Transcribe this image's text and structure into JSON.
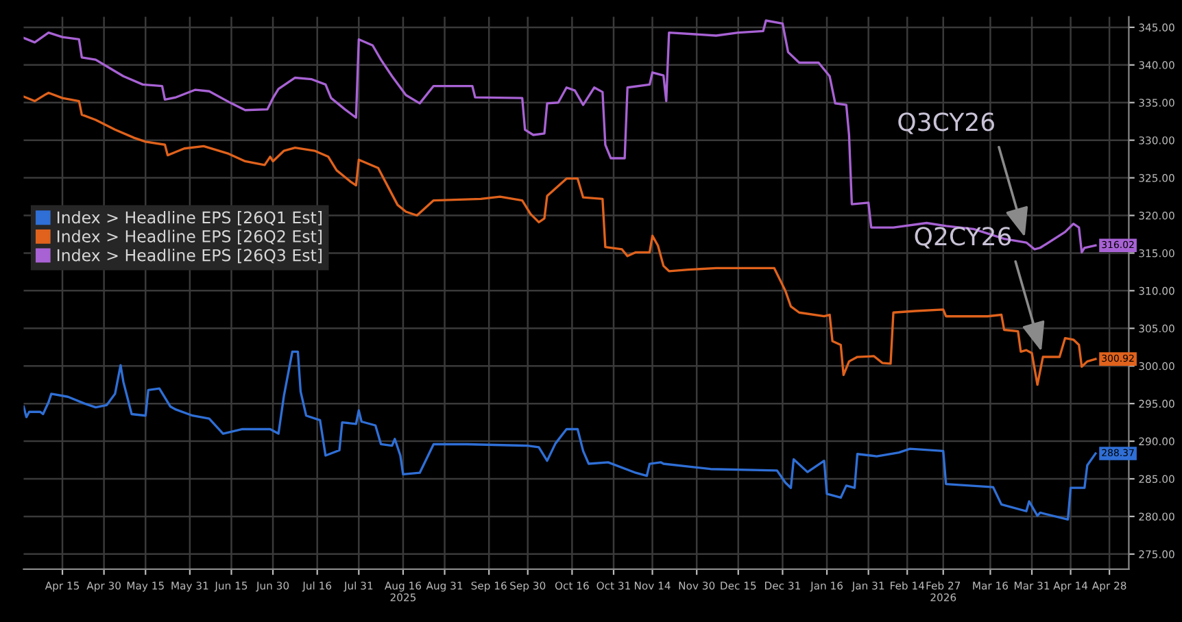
{
  "chart_data": {
    "type": "line",
    "grid": true,
    "legend": "left",
    "line_style": "solid",
    "xlim": [
      "2025-04-01",
      "2026-05-05"
    ],
    "xticks": [
      {
        "value": "2025-04-15",
        "label": "Apr 15"
      },
      {
        "value": "2025-04-30",
        "label": "Apr 30"
      },
      {
        "value": "2025-05-15",
        "label": "May 15"
      },
      {
        "value": "2025-05-31",
        "label": "May 31"
      },
      {
        "value": "2025-06-15",
        "label": "Jun 15"
      },
      {
        "value": "2025-06-30",
        "label": "Jun 30"
      },
      {
        "value": "2025-07-16",
        "label": "Jul 16"
      },
      {
        "value": "2025-07-31",
        "label": "Jul 31"
      },
      {
        "value": "2025-08-16",
        "label": "Aug 16\n2025"
      },
      {
        "value": "2025-08-31",
        "label": "Aug 31"
      },
      {
        "value": "2025-09-16",
        "label": "Sep 16"
      },
      {
        "value": "2025-09-30",
        "label": "Sep 30"
      },
      {
        "value": "2025-10-16",
        "label": "Oct 16"
      },
      {
        "value": "2025-10-31",
        "label": "Oct 31"
      },
      {
        "value": "2025-11-14",
        "label": "Nov 14"
      },
      {
        "value": "2025-11-30",
        "label": "Nov 30"
      },
      {
        "value": "2025-12-15",
        "label": "Dec 15"
      },
      {
        "value": "2025-12-31",
        "label": "Dec 31"
      },
      {
        "value": "2026-01-16",
        "label": "Jan 16"
      },
      {
        "value": "2026-01-31",
        "label": "Jan 31"
      },
      {
        "value": "2026-02-14",
        "label": "Feb 14"
      },
      {
        "value": "2026-02-27",
        "label": "Feb 27\n2026"
      },
      {
        "value": "2026-03-16",
        "label": "Mar 16"
      },
      {
        "value": "2026-03-31",
        "label": "Mar 31"
      },
      {
        "value": "2026-04-14",
        "label": "Apr 14"
      },
      {
        "value": "2026-04-28",
        "label": "Apr 28"
      }
    ],
    "ylim": [
      273,
      346.4
    ],
    "yticks": [
      {
        "value": 275,
        "label": "275.00"
      },
      {
        "value": 280,
        "label": "280.00"
      },
      {
        "value": 285,
        "label": "285.00"
      },
      {
        "value": 290,
        "label": "290.00"
      },
      {
        "value": 295,
        "label": "295.00"
      },
      {
        "value": 300,
        "label": "300.00"
      },
      {
        "value": 305,
        "label": "305.00"
      },
      {
        "value": 310,
        "label": "310.00"
      },
      {
        "value": 315,
        "label": "315.00"
      },
      {
        "value": 320,
        "label": "320.00"
      },
      {
        "value": 325,
        "label": "325.00"
      },
      {
        "value": 330,
        "label": "330.00"
      },
      {
        "value": 335,
        "label": "335.00"
      },
      {
        "value": 340,
        "label": "340.00"
      },
      {
        "value": 345,
        "label": "345.00"
      }
    ],
    "annotations": [
      {
        "text": "Q3CY26",
        "x": "2026-03-29",
        "y": 316.4
      },
      {
        "text": "Q2CY26",
        "x": "2026-04-04",
        "y": 301.2
      }
    ],
    "series": [
      {
        "name": "Index > Headline EPS [26Q1 Est]",
        "color": "#2f6fd6",
        "x": [
          "2025-04-01",
          "2025-04-02",
          "2025-04-03",
          "2025-04-07",
          "2025-04-08",
          "2025-04-10",
          "2025-04-11",
          "2025-04-17",
          "2025-04-23",
          "2025-04-27",
          "2025-05-01",
          "2025-05-04",
          "2025-05-06",
          "2025-05-07",
          "2025-05-10",
          "2025-05-15",
          "2025-05-16",
          "2025-05-20",
          "2025-05-24",
          "2025-05-26",
          "2025-06-01",
          "2025-06-07",
          "2025-06-12",
          "2025-06-19",
          "2025-06-29",
          "2025-07-02",
          "2025-07-04",
          "2025-07-07",
          "2025-07-09",
          "2025-07-10",
          "2025-07-12",
          "2025-07-17",
          "2025-07-19",
          "2025-07-24",
          "2025-07-25",
          "2025-07-30",
          "2025-07-31",
          "2025-08-01",
          "2025-08-06",
          "2025-08-08",
          "2025-08-12",
          "2025-08-13",
          "2025-08-15",
          "2025-08-16",
          "2025-08-22",
          "2025-08-27",
          "2025-09-08",
          "2025-09-30",
          "2025-10-04",
          "2025-10-07",
          "2025-10-10",
          "2025-10-14",
          "2025-10-18",
          "2025-10-20",
          "2025-10-22",
          "2025-10-29",
          "2025-11-08",
          "2025-11-12",
          "2025-11-13",
          "2025-11-17",
          "2025-11-18",
          "2025-12-05",
          "2025-12-29",
          "2026-01-01",
          "2026-01-03",
          "2026-01-04",
          "2026-01-09",
          "2026-01-15",
          "2026-01-16",
          "2026-01-21",
          "2026-01-23",
          "2026-01-26",
          "2026-01-27",
          "2026-02-03",
          "2026-02-11",
          "2026-02-15",
          "2026-02-27",
          "2026-02-28",
          "2026-03-17",
          "2026-03-20",
          "2026-03-29",
          "2026-03-30",
          "2026-04-02",
          "2026-04-03",
          "2026-04-13",
          "2026-04-14",
          "2026-04-19",
          "2026-04-20",
          "2026-04-23"
        ],
        "values": [
          294.6,
          293.2,
          293.9,
          293.9,
          293.6,
          295.2,
          296.3,
          295.9,
          295,
          294.5,
          294.8,
          296.3,
          300.1,
          297.9,
          293.6,
          293.4,
          296.8,
          297,
          294.6,
          294.2,
          293.4,
          293,
          291,
          291.6,
          291.6,
          291,
          296.1,
          301.9,
          301.9,
          296.6,
          293.4,
          292.8,
          288.1,
          288.8,
          292.5,
          292.3,
          294.1,
          292.6,
          292.1,
          289.6,
          289.4,
          290.3,
          288.1,
          285.6,
          285.8,
          289.6,
          289.6,
          289.4,
          289.2,
          287.4,
          289.7,
          291.6,
          291.6,
          288.7,
          287,
          287.2,
          285.8,
          285.4,
          287,
          287.2,
          287,
          286.3,
          286.1,
          284.5,
          283.8,
          287.6,
          285.9,
          287.4,
          283,
          282.5,
          284.1,
          283.8,
          288.3,
          288,
          288.5,
          289,
          288.7,
          284.3,
          283.9,
          281.6,
          280.7,
          282,
          280.1,
          280.5,
          279.6,
          283.8,
          283.8,
          286.8,
          288.37
        ],
        "value_labels": [
          null,
          null,
          null,
          null,
          null,
          null,
          null,
          null,
          null,
          null,
          null,
          null,
          null,
          null,
          null,
          null,
          null,
          null,
          null,
          null,
          null,
          null,
          null,
          null,
          null,
          null,
          null,
          null,
          null,
          null,
          null,
          null,
          null,
          null,
          null,
          null,
          null,
          null,
          null,
          null,
          null,
          null,
          null,
          null,
          null,
          null,
          null,
          null,
          null,
          null,
          null,
          null,
          null,
          null,
          null,
          null,
          null,
          null,
          null,
          null,
          null,
          null,
          null,
          null,
          null,
          null,
          null,
          null,
          null,
          null,
          null,
          null,
          null,
          null,
          null,
          null,
          null,
          null,
          null,
          null,
          null,
          null,
          null,
          null,
          null,
          null,
          null,
          null,
          "288.37"
        ]
      },
      {
        "name": "Index > Headline EPS [26Q2 Est]",
        "color": "#e0621c",
        "x": [
          "2025-04-01",
          "2025-04-05",
          "2025-04-09",
          "2025-04-10",
          "2025-04-15",
          "2025-04-21",
          "2025-04-22",
          "2025-04-27",
          "2025-05-04",
          "2025-05-11",
          "2025-05-15",
          "2025-05-22",
          "2025-05-23",
          "2025-05-29",
          "2025-06-05",
          "2025-06-14",
          "2025-06-20",
          "2025-06-27",
          "2025-06-29",
          "2025-06-30",
          "2025-07-04",
          "2025-07-08",
          "2025-07-15",
          "2025-07-20",
          "2025-07-23",
          "2025-07-28",
          "2025-07-30",
          "2025-07-31",
          "2025-08-07",
          "2025-08-10",
          "2025-08-14",
          "2025-08-17",
          "2025-08-21",
          "2025-08-27",
          "2025-09-13",
          "2025-09-20",
          "2025-09-28",
          "2025-10-01",
          "2025-10-04",
          "2025-10-06",
          "2025-10-07",
          "2025-10-14",
          "2025-10-18",
          "2025-10-20",
          "2025-10-27",
          "2025-10-28",
          "2025-11-03",
          "2025-11-05",
          "2025-11-08",
          "2025-11-13",
          "2025-11-14",
          "2025-11-16",
          "2025-11-18",
          "2025-11-20",
          "2025-11-27",
          "2025-12-07",
          "2025-12-28",
          "2026-01-01",
          "2026-01-03",
          "2026-01-06",
          "2026-01-15",
          "2026-01-17",
          "2026-01-18",
          "2026-01-21",
          "2026-01-22",
          "2026-01-24",
          "2026-01-27",
          "2026-02-02",
          "2026-02-05",
          "2026-02-08",
          "2026-02-09",
          "2026-02-17",
          "2026-02-27",
          "2026-02-28",
          "2026-03-15",
          "2026-03-20",
          "2026-03-21",
          "2026-03-26",
          "2026-03-27",
          "2026-03-29",
          "2026-03-31",
          "2026-04-02",
          "2026-04-04",
          "2026-04-10",
          "2026-04-12",
          "2026-04-15",
          "2026-04-17",
          "2026-04-18",
          "2026-04-20",
          "2026-04-23"
        ],
        "values": [
          335.8,
          335.2,
          336.1,
          336.3,
          335.6,
          335.2,
          333.4,
          332.7,
          331.4,
          330.3,
          329.8,
          329.4,
          328,
          328.9,
          329.2,
          328.2,
          327.2,
          326.7,
          327.8,
          327.2,
          328.6,
          329,
          328.6,
          327.8,
          326,
          324.5,
          324,
          327.4,
          326.3,
          324.2,
          321.4,
          320.5,
          320,
          322,
          322.2,
          322.5,
          322,
          320.2,
          319.1,
          319.6,
          322.6,
          324.9,
          324.9,
          322.4,
          322.2,
          315.8,
          315.5,
          314.6,
          315.1,
          315.1,
          317.3,
          316,
          313.3,
          312.6,
          312.8,
          313,
          313,
          310,
          307.9,
          307.1,
          306.6,
          306.8,
          303.3,
          302.8,
          298.8,
          300.6,
          301.2,
          301.3,
          300.4,
          300.3,
          307.1,
          307.3,
          307.5,
          306.6,
          306.6,
          306.8,
          304.8,
          304.6,
          301.9,
          302.1,
          301.7,
          297.5,
          301.2,
          301.2,
          303.7,
          303.5,
          302.8,
          299.9,
          300.6,
          300.92
        ],
        "value_labels": [
          null,
          null,
          null,
          null,
          null,
          null,
          null,
          null,
          null,
          null,
          null,
          null,
          null,
          null,
          null,
          null,
          null,
          null,
          null,
          null,
          null,
          null,
          null,
          null,
          null,
          null,
          null,
          null,
          null,
          null,
          null,
          null,
          null,
          null,
          null,
          null,
          null,
          null,
          null,
          null,
          null,
          null,
          null,
          null,
          null,
          null,
          null,
          null,
          null,
          null,
          null,
          null,
          null,
          null,
          null,
          null,
          null,
          null,
          null,
          null,
          null,
          null,
          null,
          null,
          null,
          null,
          null,
          null,
          null,
          null,
          null,
          null,
          null,
          null,
          null,
          null,
          null,
          null,
          null,
          null,
          null,
          null,
          null,
          null,
          null,
          null,
          null,
          null,
          null,
          "300.92"
        ]
      },
      {
        "name": "Index > Headline EPS [26Q3 Est]",
        "color": "#a862d4",
        "x": [
          "2025-04-01",
          "2025-04-05",
          "2025-04-10",
          "2025-04-15",
          "2025-04-21",
          "2025-04-22",
          "2025-04-27",
          "2025-05-02",
          "2025-05-07",
          "2025-05-14",
          "2025-05-21",
          "2025-05-22",
          "2025-05-26",
          "2025-06-02",
          "2025-06-07",
          "2025-06-15",
          "2025-06-20",
          "2025-06-28",
          "2025-06-30",
          "2025-07-02",
          "2025-07-08",
          "2025-07-14",
          "2025-07-19",
          "2025-07-21",
          "2025-07-26",
          "2025-07-30",
          "2025-07-31",
          "2025-08-05",
          "2025-08-08",
          "2025-08-12",
          "2025-08-17",
          "2025-08-22",
          "2025-08-27",
          "2025-09-10",
          "2025-09-11",
          "2025-09-28",
          "2025-09-29",
          "2025-10-02",
          "2025-10-06",
          "2025-10-07",
          "2025-10-11",
          "2025-10-14",
          "2025-10-17",
          "2025-10-20",
          "2025-10-24",
          "2025-10-27",
          "2025-10-28",
          "2025-10-30",
          "2025-11-04",
          "2025-11-05",
          "2025-11-13",
          "2025-11-14",
          "2025-11-18",
          "2025-11-19",
          "2025-11-20",
          "2025-12-07",
          "2025-12-15",
          "2025-12-24",
          "2025-12-25",
          "2025-12-31",
          "2026-01-02",
          "2026-01-06",
          "2026-01-13",
          "2026-01-17",
          "2026-01-19",
          "2026-01-23",
          "2026-01-24",
          "2026-01-25",
          "2026-01-31",
          "2026-02-01",
          "2026-02-09",
          "2026-02-21",
          "2026-02-28",
          "2026-03-10",
          "2026-03-21",
          "2026-03-29",
          "2026-04-01",
          "2026-04-03",
          "2026-04-12",
          "2026-04-15",
          "2026-04-17",
          "2026-04-18",
          "2026-04-19",
          "2026-04-23"
        ],
        "values": [
          343.6,
          343,
          344.3,
          343.7,
          343.4,
          341,
          340.7,
          339.6,
          338.5,
          337.4,
          337.2,
          335.4,
          335.7,
          336.7,
          336.5,
          334.9,
          334,
          334.1,
          335.6,
          336.8,
          338.3,
          338.1,
          337.4,
          335.6,
          334.1,
          333,
          343.4,
          342.6,
          340.7,
          338.5,
          336,
          334.9,
          337.2,
          337.2,
          335.7,
          335.6,
          331.4,
          330.7,
          330.9,
          334.9,
          335,
          337,
          336.6,
          334.7,
          337,
          336.4,
          329.4,
          327.6,
          327.6,
          337,
          337.4,
          339,
          338.6,
          335.2,
          344.3,
          343.9,
          344.3,
          344.5,
          345.9,
          345.5,
          341.7,
          340.3,
          340.3,
          338.5,
          334.9,
          334.7,
          330.7,
          321.5,
          321.7,
          318.4,
          318.4,
          319,
          318.6,
          318.2,
          316.9,
          316.4,
          315.5,
          315.7,
          317.8,
          318.9,
          318.4,
          315.1,
          315.7,
          316.02
        ],
        "value_labels": [
          null,
          null,
          null,
          null,
          null,
          null,
          null,
          null,
          null,
          null,
          null,
          null,
          null,
          null,
          null,
          null,
          null,
          null,
          null,
          null,
          null,
          null,
          null,
          null,
          null,
          null,
          null,
          null,
          null,
          null,
          null,
          null,
          null,
          null,
          null,
          null,
          null,
          null,
          null,
          null,
          null,
          null,
          null,
          null,
          null,
          null,
          null,
          null,
          null,
          null,
          null,
          null,
          null,
          null,
          null,
          null,
          null,
          null,
          null,
          null,
          null,
          null,
          null,
          null,
          null,
          null,
          null,
          null,
          null,
          null,
          null,
          null,
          null,
          null,
          null,
          null,
          null,
          null,
          null,
          null,
          null,
          null,
          null,
          "316.02"
        ]
      }
    ]
  }
}
